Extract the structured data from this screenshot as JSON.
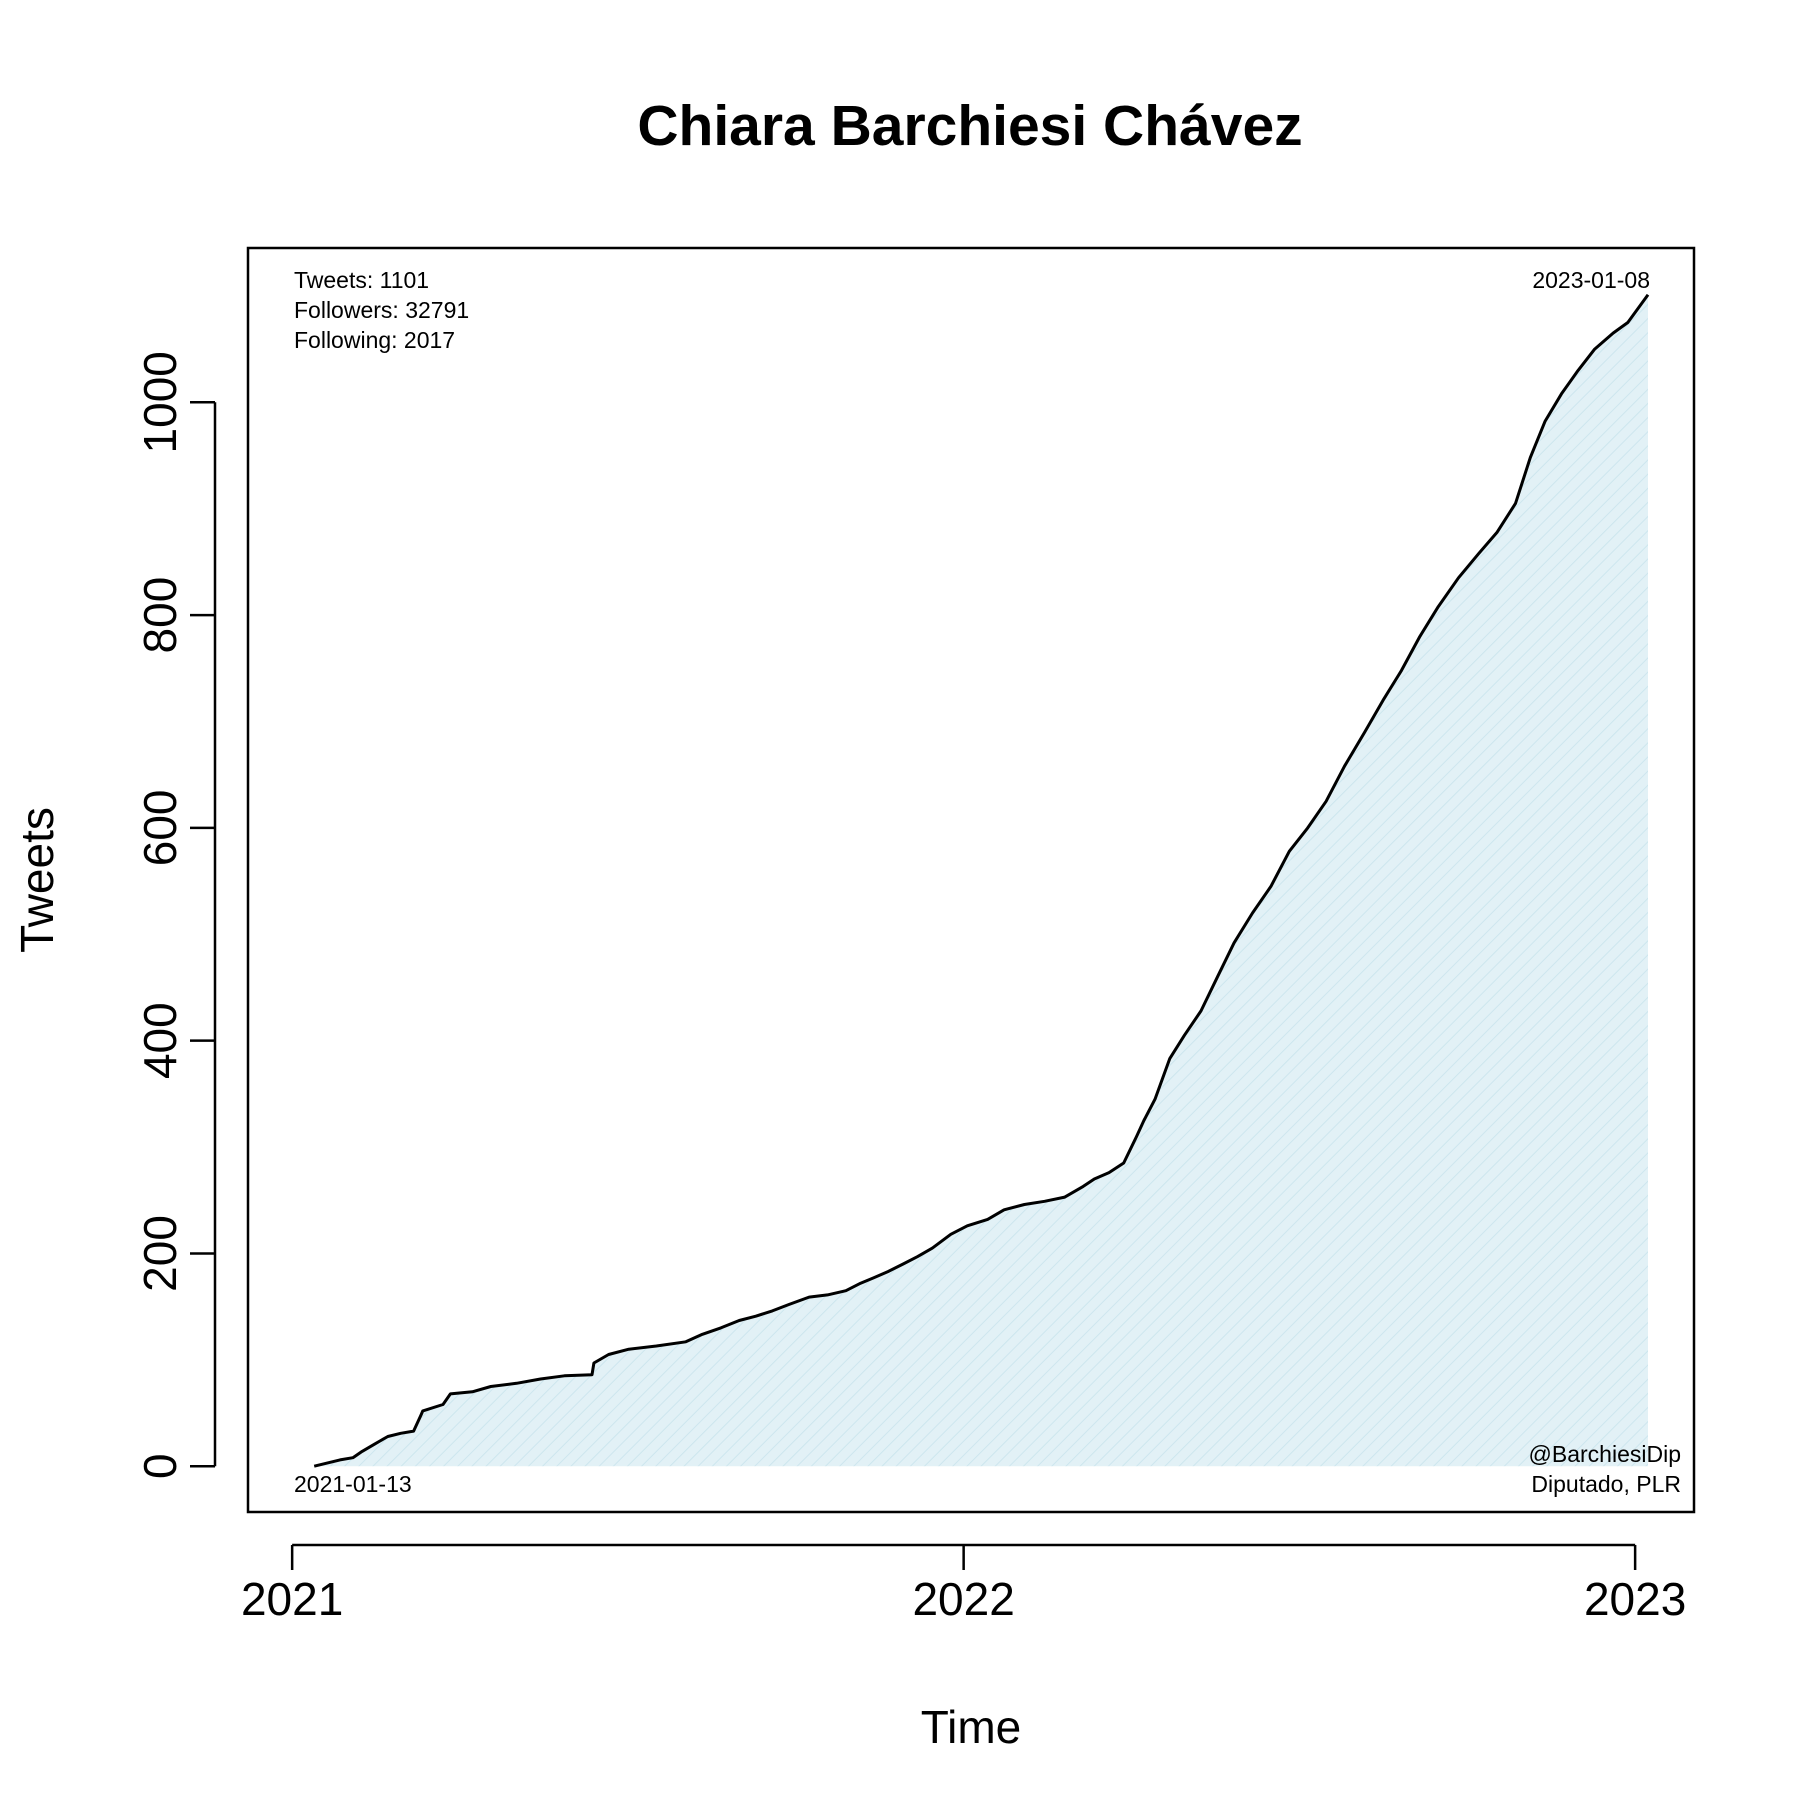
{
  "chart_data": {
    "type": "area",
    "title": "Chiara Barchiesi Chávez",
    "xlabel": "Time",
    "ylabel": "Tweets",
    "x_ticks": [
      {
        "label": "2021",
        "date": "2021-01-01"
      },
      {
        "label": "2022",
        "date": "2022-01-01"
      },
      {
        "label": "2023",
        "date": "2023-01-01"
      }
    ],
    "y_ticks": [
      0,
      200,
      400,
      600,
      800,
      1000
    ],
    "xlim": [
      "2020-12-08",
      "2023-02-02"
    ],
    "ylim": [
      -43,
      1145
    ],
    "grid": false,
    "legend": "none",
    "stats": [
      "Tweets: 1101",
      "Followers: 32791",
      "Following: 2017"
    ],
    "start_label": "2021-01-13",
    "end_label": "2023-01-08",
    "handle": "@BarchiesiDip",
    "role": "Diputado, PLR",
    "colors": {
      "line": "#000000",
      "fill": "#e2f1f6",
      "hatch": "#cde6ee",
      "frame": "#000000"
    },
    "series": [
      {
        "x": [
          "2021-01-13",
          "2021-01-20",
          "2021-01-27",
          "2021-02-03",
          "2021-02-08",
          "2021-02-15",
          "2021-02-22",
          "2021-03-01",
          "2021-03-08",
          "2021-03-12",
          "2021-03-13",
          "2021-03-24",
          "2021-03-28",
          "2021-04-09",
          "2021-04-19",
          "2021-05-03",
          "2021-05-16",
          "2021-05-29",
          "2021-06-13",
          "2021-06-14",
          "2021-06-22",
          "2021-07-03",
          "2021-07-18",
          "2021-08-03",
          "2021-08-12",
          "2021-08-22",
          "2021-09-01",
          "2021-09-10",
          "2021-09-19",
          "2021-09-28",
          "2021-10-09",
          "2021-10-19",
          "2021-10-29",
          "2021-11-06",
          "2021-11-13",
          "2021-11-21",
          "2021-11-29",
          "2021-12-07",
          "2021-12-15",
          "2021-12-25",
          "2022-01-03",
          "2022-01-14",
          "2022-01-23",
          "2022-02-03",
          "2022-02-14",
          "2022-02-25",
          "2022-03-07",
          "2022-03-13",
          "2022-03-21",
          "2022-03-29",
          "2022-04-05",
          "2022-04-09",
          "2022-04-15",
          "2022-04-23",
          "2022-05-01",
          "2022-05-10",
          "2022-05-19",
          "2022-05-28",
          "2022-06-07",
          "2022-06-17",
          "2022-06-27",
          "2022-07-07",
          "2022-07-17",
          "2022-07-27",
          "2022-08-07",
          "2022-08-17",
          "2022-08-27",
          "2022-09-06",
          "2022-09-16",
          "2022-09-27",
          "2022-10-08",
          "2022-10-18",
          "2022-10-28",
          "2022-11-05",
          "2022-11-13",
          "2022-11-22",
          "2022-12-01",
          "2022-12-10",
          "2022-12-20",
          "2022-12-28",
          "2023-01-08"
        ],
        "y": [
          0,
          3,
          6,
          8,
          14,
          21,
          28,
          31,
          33,
          48,
          52,
          58,
          68,
          70,
          75,
          78,
          82,
          85,
          86,
          97,
          105,
          110,
          113,
          117,
          124,
          130,
          137,
          141,
          146,
          152,
          159,
          161,
          165,
          172,
          177,
          183,
          190,
          197,
          205,
          218,
          226,
          232,
          241,
          246,
          249,
          253,
          263,
          270,
          276,
          285,
          310,
          325,
          345,
          383,
          405,
          428,
          460,
          492,
          520,
          545,
          578,
          600,
          625,
          658,
          690,
          720,
          748,
          780,
          808,
          835,
          858,
          878,
          905,
          948,
          982,
          1008,
          1030,
          1050,
          1065,
          1075,
          1101
        ]
      }
    ]
  }
}
